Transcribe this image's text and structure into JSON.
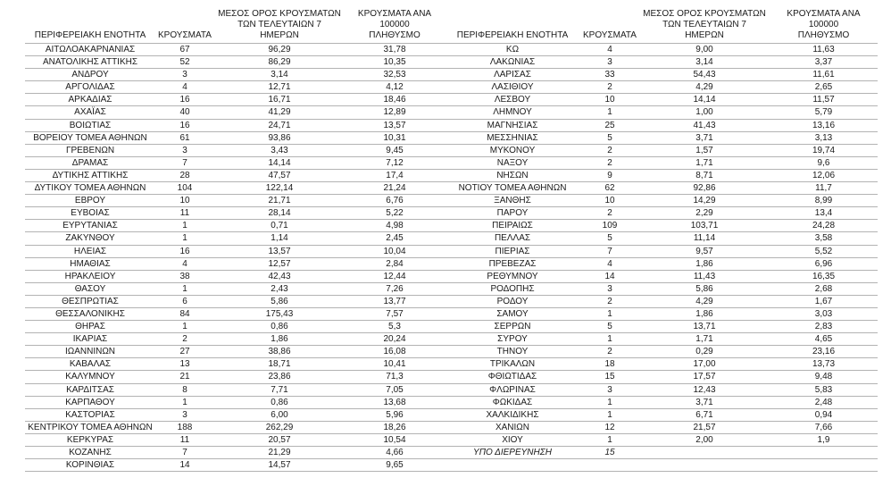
{
  "page": {
    "background_color": "#ffffff",
    "text_color": "#1a1a1a",
    "grid_line_color": "#b3b3b3"
  },
  "table": {
    "headers": {
      "region": "ΠΕΡΙΦΕΡΕΙΑΚΗ ΕΝΟΤΗΤΑ",
      "cases": "ΚΡΟΥΣΜΑΤΑ",
      "avg_7day": "ΜΕΣΟΣ ΟΡΟΣ ΚΡΟΥΣΜΑΤΩΝ\nΤΩΝ ΤΕΛΕΥΤΑΙΩΝ 7\nΗΜΕΡΩΝ",
      "per_100k": "ΚΡΟΥΣΜΑΤΑ ΑΝΑ 100000\nΠΛΗΘΥΣΜΟ"
    },
    "left_rows": [
      [
        "ΑΙΤΩΛΟΑΚΑΡΝΑΝΙΑΣ",
        "67",
        "96,29",
        "31,78"
      ],
      [
        "ΑΝΑΤΟΛΙΚΗΣ ΑΤΤΙΚΗΣ",
        "52",
        "86,29",
        "10,35"
      ],
      [
        "ΑΝΔΡΟΥ",
        "3",
        "3,14",
        "32,53"
      ],
      [
        "ΑΡΓΟΛΙΔΑΣ",
        "4",
        "12,71",
        "4,12"
      ],
      [
        "ΑΡΚΑΔΙΑΣ",
        "16",
        "16,71",
        "18,46"
      ],
      [
        "ΑΧΑΪΑΣ",
        "40",
        "41,29",
        "12,89"
      ],
      [
        "ΒΟΙΩΤΙΑΣ",
        "16",
        "24,71",
        "13,57"
      ],
      [
        "ΒΟΡΕΙΟΥ ΤΟΜΕΑ ΑΘΗΝΩΝ",
        "61",
        "93,86",
        "10,31"
      ],
      [
        "ΓΡΕΒΕΝΩΝ",
        "3",
        "3,43",
        "9,45"
      ],
      [
        "ΔΡΑΜΑΣ",
        "7",
        "14,14",
        "7,12"
      ],
      [
        "ΔΥΤΙΚΗΣ ΑΤΤΙΚΗΣ",
        "28",
        "47,57",
        "17,4"
      ],
      [
        "ΔΥΤΙΚΟΥ ΤΟΜΕΑ ΑΘΗΝΩΝ",
        "104",
        "122,14",
        "21,24"
      ],
      [
        "ΕΒΡΟΥ",
        "10",
        "21,71",
        "6,76"
      ],
      [
        "ΕΥΒΟΙΑΣ",
        "11",
        "28,14",
        "5,22"
      ],
      [
        "ΕΥΡΥΤΑΝΙΑΣ",
        "1",
        "0,71",
        "4,98"
      ],
      [
        "ΖΑΚΥΝΘΟΥ",
        "1",
        "1,14",
        "2,45"
      ],
      [
        "ΗΛΕΙΑΣ",
        "16",
        "13,57",
        "10,04"
      ],
      [
        "ΗΜΑΘΙΑΣ",
        "4",
        "12,57",
        "2,84"
      ],
      [
        "ΗΡΑΚΛΕΙΟΥ",
        "38",
        "42,43",
        "12,44"
      ],
      [
        "ΘΑΣΟΥ",
        "1",
        "2,43",
        "7,26"
      ],
      [
        "ΘΕΣΠΡΩΤΙΑΣ",
        "6",
        "5,86",
        "13,77"
      ],
      [
        "ΘΕΣΣΑΛΟΝΙΚΗΣ",
        "84",
        "175,43",
        "7,57"
      ],
      [
        "ΘΗΡΑΣ",
        "1",
        "0,86",
        "5,3"
      ],
      [
        "ΙΚΑΡΙΑΣ",
        "2",
        "1,86",
        "20,24"
      ],
      [
        "ΙΩΑΝΝΙΝΩΝ",
        "27",
        "38,86",
        "16,08"
      ],
      [
        "ΚΑΒΑΛΑΣ",
        "13",
        "18,71",
        "10,41"
      ],
      [
        "ΚΑΛΥΜΝΟΥ",
        "21",
        "23,86",
        "71,3"
      ],
      [
        "ΚΑΡΔΙΤΣΑΣ",
        "8",
        "7,71",
        "7,05"
      ],
      [
        "ΚΑΡΠΑΘΟΥ",
        "1",
        "0,86",
        "13,68"
      ],
      [
        "ΚΑΣΤΟΡΙΑΣ",
        "3",
        "6,00",
        "5,96"
      ],
      [
        "ΚΕΝΤΡΙΚΟΥ ΤΟΜΕΑ ΑΘΗΝΩΝ",
        "188",
        "262,29",
        "18,26"
      ],
      [
        "ΚΕΡΚΥΡΑΣ",
        "11",
        "20,57",
        "10,54"
      ],
      [
        "ΚΟΖΑΝΗΣ",
        "7",
        "21,29",
        "4,66"
      ],
      [
        "ΚΟΡΙΝΘΙΑΣ",
        "14",
        "14,57",
        "9,65"
      ]
    ],
    "right_rows": [
      [
        "ΚΩ",
        "4",
        "9,00",
        "11,63"
      ],
      [
        "ΛΑΚΩΝΙΑΣ",
        "3",
        "3,14",
        "3,37"
      ],
      [
        "ΛΑΡΙΣΑΣ",
        "33",
        "54,43",
        "11,61"
      ],
      [
        "ΛΑΣΙΘΙΟΥ",
        "2",
        "4,29",
        "2,65"
      ],
      [
        "ΛΕΣΒΟΥ",
        "10",
        "14,14",
        "11,57"
      ],
      [
        "ΛΗΜΝΟΥ",
        "1",
        "1,00",
        "5,79"
      ],
      [
        "ΜΑΓΝΗΣΙΑΣ",
        "25",
        "41,43",
        "13,16"
      ],
      [
        "ΜΕΣΣΗΝΙΑΣ",
        "5",
        "3,71",
        "3,13"
      ],
      [
        "ΜΥΚΟΝΟΥ",
        "2",
        "1,57",
        "19,74"
      ],
      [
        "ΝΑΞΟΥ",
        "2",
        "1,71",
        "9,6"
      ],
      [
        "ΝΗΣΩΝ",
        "9",
        "8,71",
        "12,06"
      ],
      [
        "ΝΟΤΙΟΥ ΤΟΜΕΑ ΑΘΗΝΩΝ",
        "62",
        "92,86",
        "11,7"
      ],
      [
        "ΞΑΝΘΗΣ",
        "10",
        "14,29",
        "8,99"
      ],
      [
        "ΠΑΡΟΥ",
        "2",
        "2,29",
        "13,4"
      ],
      [
        "ΠΕΙΡΑΙΩΣ",
        "109",
        "103,71",
        "24,28"
      ],
      [
        "ΠΕΛΛΑΣ",
        "5",
        "11,14",
        "3,58"
      ],
      [
        "ΠΙΕΡΙΑΣ",
        "7",
        "9,57",
        "5,52"
      ],
      [
        "ΠΡΕΒΕΖΑΣ",
        "4",
        "1,86",
        "6,96"
      ],
      [
        "ΡΕΘΥΜΝΟΥ",
        "14",
        "11,43",
        "16,35"
      ],
      [
        "ΡΟΔΟΠΗΣ",
        "3",
        "5,86",
        "2,68"
      ],
      [
        "ΡΟΔΟΥ",
        "2",
        "4,29",
        "1,67"
      ],
      [
        "ΣΑΜΟΥ",
        "1",
        "1,86",
        "3,03"
      ],
      [
        "ΣΕΡΡΩΝ",
        "5",
        "13,71",
        "2,83"
      ],
      [
        "ΣΥΡΟΥ",
        "1",
        "1,71",
        "4,65"
      ],
      [
        "ΤΗΝΟΥ",
        "2",
        "0,29",
        "23,16"
      ],
      [
        "ΤΡΙΚΑΛΩΝ",
        "18",
        "17,00",
        "13,73"
      ],
      [
        "ΦΘΙΩΤΙΔΑΣ",
        "15",
        "17,57",
        "9,48"
      ],
      [
        "ΦΛΩΡΙΝΑΣ",
        "3",
        "12,43",
        "5,83"
      ],
      [
        "ΦΩΚΙΔΑΣ",
        "1",
        "3,71",
        "2,48"
      ],
      [
        "ΧΑΛΚΙΔΙΚΗΣ",
        "1",
        "6,71",
        "0,94"
      ],
      [
        "ΧΑΝΙΩΝ",
        "12",
        "21,57",
        "7,66"
      ],
      [
        "ΧΙΟΥ",
        "1",
        "2,00",
        "1,9"
      ],
      [
        "ΥΠΟ ΔΙΕΡΕΥΝΗΣΗ",
        "15",
        "",
        "",
        "italic"
      ]
    ]
  }
}
